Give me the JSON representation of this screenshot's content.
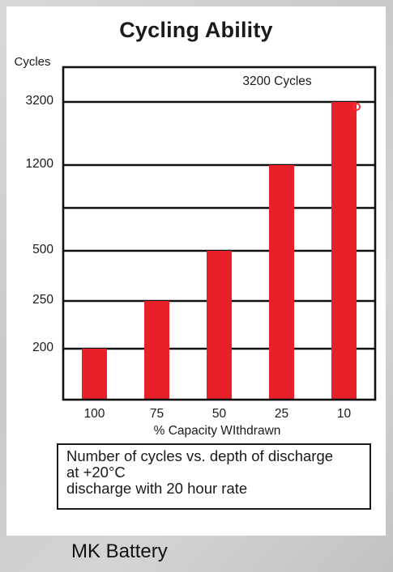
{
  "chart_data": {
    "type": "bar",
    "title": "Cycling Ability",
    "ylabel": "Cycles",
    "xlabel": "% Capacity WIthdrawn",
    "categories": [
      "100",
      "75",
      "50",
      "25",
      "10"
    ],
    "values": [
      200,
      250,
      500,
      1200,
      3200
    ],
    "y_ticks": [
      "200",
      "250",
      "500",
      "",
      "1200",
      "3200"
    ],
    "annotation": "3200 Cycles",
    "bar_color": "#e8202a",
    "grid": true
  },
  "note": {
    "line1": "Number of cycles vs. depth of discharge",
    "line2": "at +20°C",
    "line3": "discharge with 20 hour rate"
  },
  "caption": "MK Battery"
}
